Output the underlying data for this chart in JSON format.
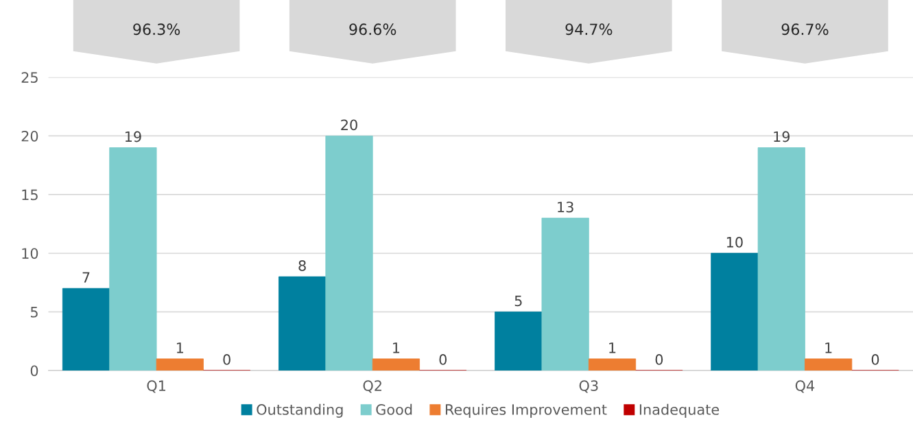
{
  "chart_data": {
    "type": "bar",
    "categories": [
      "Q1",
      "Q2",
      "Q3",
      "Q4"
    ],
    "series": [
      {
        "name": "Outstanding",
        "color": "#00809f",
        "values": [
          7,
          8,
          5,
          10
        ]
      },
      {
        "name": "Good",
        "color": "#7dcdcd",
        "values": [
          19,
          20,
          13,
          19
        ]
      },
      {
        "name": "Requires Improvement",
        "color": "#ed7d31",
        "values": [
          1,
          1,
          1,
          1
        ]
      },
      {
        "name": "Inadequate",
        "color": "#c00000",
        "values": [
          0,
          0,
          0,
          0
        ]
      }
    ],
    "ylim": [
      0,
      25
    ],
    "yticks": [
      0,
      5,
      10,
      15,
      20,
      25
    ],
    "grid": "y",
    "legend": "bottom",
    "data_labels": true,
    "annotations": [
      "96.3%",
      "96.6%",
      "94.7%",
      "96.7%"
    ]
  }
}
